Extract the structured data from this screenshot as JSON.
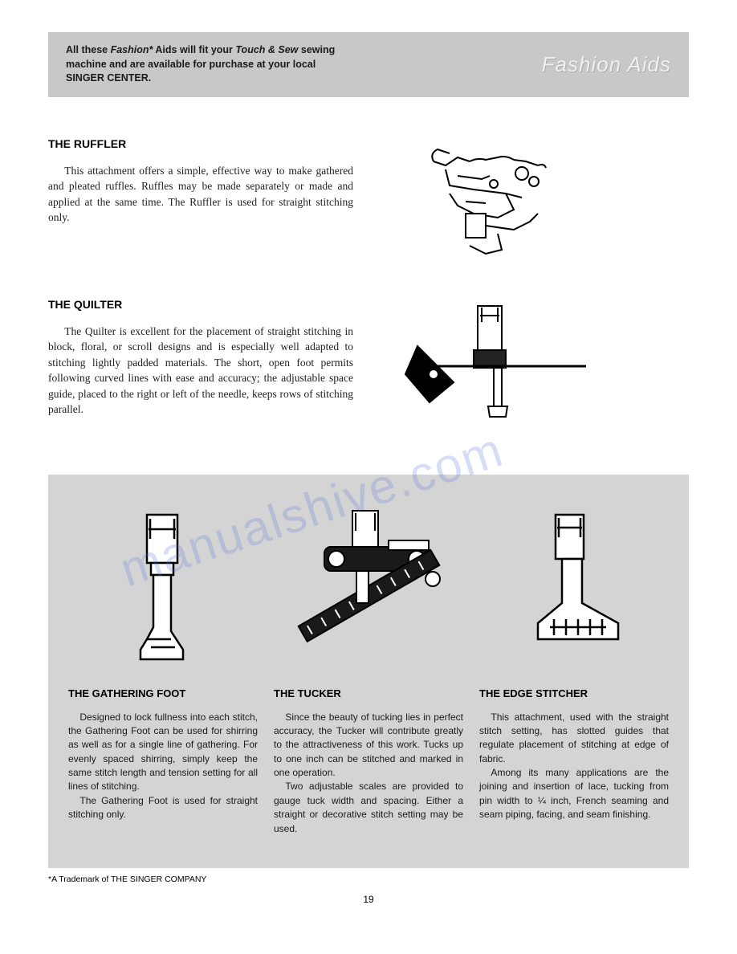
{
  "banner": {
    "left_html": "All these <em>Fashion*</em> Aids will fit your <em>Touch & Sew</em> sewing machine and are available for purchase at your local SINGER CENTER.",
    "right": "Fashion Aids"
  },
  "sections": {
    "ruffler": {
      "title": "THE RUFFLER",
      "body": "This attachment offers a simple, effective way to make gathered and pleated ruffles. Ruffles may be made separately or made and applied at the same time. The Ruffler is used for straight stitching only."
    },
    "quilter": {
      "title": "THE QUILTER",
      "body": "The Quilter is excellent for the placement of straight stitching in block, floral, or scroll designs and is especially well adapted to stitching lightly padded materials. The short, open foot permits following curved lines with ease and accuracy; the adjustable space guide, placed to the right or left of the needle, keeps rows of stitching parallel."
    }
  },
  "panel": {
    "gathering": {
      "title": "THE GATHERING FOOT",
      "p1": "Designed to lock fullness into each stitch, the Gathering Foot can be used for shirring as well as for a single line of gathering. For evenly spaced shirring, simply keep the same stitch length and tension setting for all lines of stitching.",
      "p2": "The Gathering Foot is used for straight stitching only."
    },
    "tucker": {
      "title": "THE TUCKER",
      "p1": "Since the beauty of tucking lies in perfect accuracy, the Tucker will contribute greatly to the attractiveness of this work. Tucks up to one inch can be stitched and marked in one operation.",
      "p2": "Two adjustable scales are provided to gauge tuck width and spacing. Either a straight or decorative stitch setting may be used."
    },
    "edge": {
      "title": "THE EDGE STITCHER",
      "p1": "This attachment, used with the straight stitch setting, has slotted guides that regulate placement of stitching at edge of fabric.",
      "p2": "Among its many applications are the joining and insertion of lace, tucking from pin width to ¼ inch, French seaming and seam piping, facing, and seam finishing."
    }
  },
  "footnote": "*A Trademark of THE SINGER COMPANY",
  "page_number": "19",
  "watermark": "manualshive.com",
  "colors": {
    "banner_bg": "#c8c8c8",
    "panel_bg": "#d4d4d4",
    "text": "#1a1a1a",
    "watermark": "rgba(100,120,220,0.25)"
  }
}
